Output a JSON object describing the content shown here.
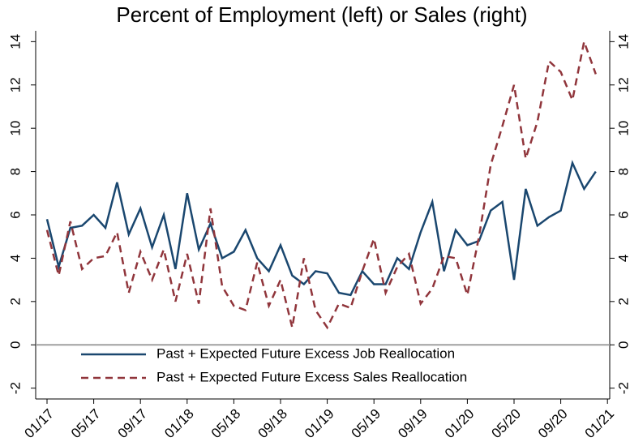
{
  "chart_data": {
    "type": "line",
    "title": "Percent of Employment (left) or Sales (right)",
    "x": [
      "01/17",
      "02/17",
      "03/17",
      "04/17",
      "05/17",
      "06/17",
      "07/17",
      "08/17",
      "09/17",
      "10/17",
      "11/17",
      "12/17",
      "01/18",
      "02/18",
      "03/18",
      "04/18",
      "05/18",
      "06/18",
      "07/18",
      "08/18",
      "09/18",
      "10/18",
      "11/18",
      "12/18",
      "01/19",
      "02/19",
      "03/19",
      "04/19",
      "05/19",
      "06/19",
      "07/19",
      "08/19",
      "09/19",
      "10/19",
      "11/19",
      "12/19",
      "01/20",
      "02/20",
      "03/20",
      "04/20",
      "05/20",
      "06/20",
      "07/20",
      "08/20",
      "09/20",
      "10/20",
      "11/20",
      "12/20"
    ],
    "xticks": [
      "01/17",
      "05/17",
      "09/17",
      "01/18",
      "05/18",
      "09/18",
      "01/19",
      "05/19",
      "09/19",
      "01/20",
      "05/20",
      "09/20",
      "01/21"
    ],
    "series": [
      {
        "name": "Past + Expected Future Excess Job Reallocation",
        "color": "#1a476f",
        "dash": false,
        "axis": "y",
        "values": [
          5.8,
          3.6,
          5.4,
          5.5,
          6.0,
          5.4,
          7.5,
          5.1,
          6.3,
          4.5,
          6.0,
          3.5,
          7.0,
          4.4,
          5.6,
          4.0,
          4.3,
          5.3,
          4.0,
          3.4,
          4.6,
          3.2,
          2.8,
          3.4,
          3.3,
          2.4,
          2.3,
          3.4,
          2.8,
          2.8,
          4.0,
          3.5,
          5.2,
          6.6,
          3.4,
          5.3,
          4.6,
          4.8,
          6.2,
          6.6,
          3.0,
          7.2,
          5.5,
          5.9,
          6.2,
          8.4,
          7.2,
          8.0
        ]
      },
      {
        "name": "Past + Expected Future Excess Sales Reallocation",
        "color": "#90353b",
        "dash": true,
        "axis": "y2",
        "values": [
          5.3,
          3.2,
          5.7,
          3.5,
          4.0,
          4.1,
          5.2,
          2.4,
          4.3,
          3.0,
          4.4,
          2.0,
          4.2,
          1.9,
          6.3,
          2.7,
          1.8,
          1.6,
          3.8,
          1.8,
          3.0,
          0.8,
          4.0,
          1.6,
          0.8,
          1.9,
          1.7,
          3.4,
          4.9,
          2.4,
          3.6,
          4.2,
          1.9,
          2.6,
          4.1,
          4.0,
          2.3,
          5.0,
          8.3,
          10.1,
          12.0,
          8.6,
          10.3,
          13.1,
          12.6,
          11.3,
          14.0,
          12.5
        ]
      }
    ],
    "ylim": [
      -2.5,
      14.5
    ],
    "yticks": [
      -2,
      0,
      2,
      4,
      6,
      8,
      10,
      12,
      14
    ],
    "y2lim": [
      -2.5,
      14.5
    ],
    "y2ticks": [
      -2,
      0,
      2,
      4,
      6,
      8,
      10,
      12,
      14
    ],
    "reference_line": 0,
    "reference_color": "#a0a0a0"
  }
}
